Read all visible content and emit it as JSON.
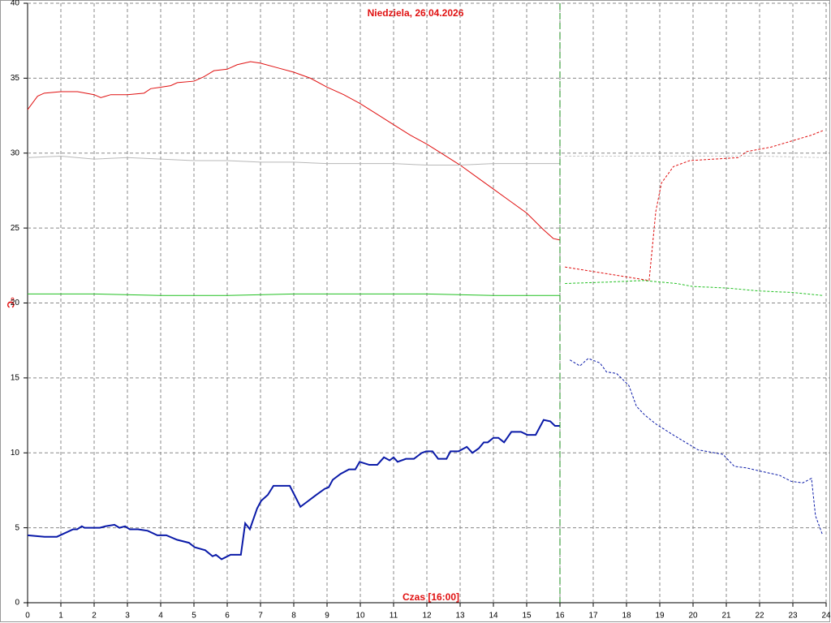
{
  "chart_data": {
    "type": "line",
    "title": "Niedziela, 26.04.2026",
    "x_label": "Czas [16:00]",
    "y_label": "°C",
    "xlim": [
      0,
      24
    ],
    "ylim": [
      0,
      40
    ],
    "xticks": [
      0,
      1,
      2,
      3,
      4,
      5,
      6,
      7,
      8,
      9,
      10,
      11,
      12,
      13,
      14,
      15,
      16,
      17,
      18,
      19,
      20,
      21,
      22,
      23,
      24
    ],
    "yticks": [
      0,
      5,
      10,
      15,
      20,
      25,
      30,
      35,
      40
    ],
    "grid": true,
    "vline": 16,
    "vline_color": "#1a8f1a",
    "series": [
      {
        "color": "#e01010",
        "style": "solid",
        "width": 1,
        "x": [
          0,
          0.3,
          0.5,
          1,
          1.5,
          2,
          2.2,
          2.5,
          3,
          3.5,
          3.7,
          4,
          4.3,
          4.5,
          5,
          5.3,
          5.6,
          6,
          6.3,
          6.7,
          7,
          7.5,
          8,
          8.5,
          9,
          9.5,
          10,
          10.5,
          11,
          11.5,
          12,
          12.5,
          13,
          13.5,
          14,
          14.5,
          15,
          15.5,
          15.8,
          16
        ],
        "values": [
          32.9,
          33.8,
          34.0,
          34.1,
          34.1,
          33.9,
          33.7,
          33.9,
          33.9,
          34.0,
          34.3,
          34.4,
          34.5,
          34.7,
          34.8,
          35.1,
          35.5,
          35.6,
          35.9,
          36.1,
          36.0,
          35.7,
          35.4,
          35.0,
          34.4,
          33.9,
          33.3,
          32.6,
          31.9,
          31.2,
          30.6,
          29.9,
          29.2,
          28.4,
          27.6,
          26.8,
          26.0,
          24.9,
          24.3,
          24.2
        ]
      },
      {
        "color": "#b8b8b8",
        "style": "solid",
        "width": 1,
        "x": [
          0,
          1,
          2,
          3,
          4,
          5,
          6,
          7,
          8,
          9,
          10,
          11,
          12,
          13,
          14,
          15,
          16
        ],
        "values": [
          29.7,
          29.8,
          29.6,
          29.7,
          29.6,
          29.5,
          29.5,
          29.4,
          29.4,
          29.3,
          29.3,
          29.3,
          29.2,
          29.2,
          29.3,
          29.3,
          29.3
        ]
      },
      {
        "color": "#22c022",
        "style": "solid",
        "width": 1,
        "x": [
          0,
          2,
          4,
          6,
          8,
          10,
          12,
          14,
          16
        ],
        "values": [
          20.6,
          20.6,
          20.5,
          20.5,
          20.6,
          20.6,
          20.6,
          20.5,
          20.5
        ]
      },
      {
        "color": "#0a1aa8",
        "style": "solid",
        "width": 2,
        "x": [
          0,
          0.51,
          0.88,
          1.37,
          1.49,
          1.63,
          1.71,
          1.93,
          2.17,
          2.34,
          2.61,
          2.76,
          2.93,
          3.07,
          3.32,
          3.61,
          3.9,
          4.17,
          4.49,
          4.85,
          5.02,
          5.34,
          5.56,
          5.66,
          5.83,
          6.1,
          6.29,
          6.41,
          6.54,
          6.68,
          6.9,
          7.02,
          7.22,
          7.39,
          7.88,
          8.2,
          8.44,
          8.68,
          8.93,
          9.05,
          9.17,
          9.41,
          9.66,
          9.85,
          9.98,
          10.27,
          10.51,
          10.71,
          10.88,
          11.0,
          11.12,
          11.37,
          11.61,
          11.85,
          11.98,
          12.17,
          12.34,
          12.59,
          12.71,
          12.95,
          13.2,
          13.37,
          13.56,
          13.71,
          13.83,
          14.0,
          14.15,
          14.32,
          14.54,
          14.83,
          15.02,
          15.27,
          15.51,
          15.71,
          15.85,
          16.0
        ],
        "values": [
          4.5,
          4.4,
          4.4,
          4.9,
          4.9,
          5.1,
          5.0,
          5.0,
          5.0,
          5.1,
          5.2,
          5.0,
          5.1,
          4.9,
          4.9,
          4.8,
          4.5,
          4.5,
          4.2,
          4.0,
          3.7,
          3.5,
          3.1,
          3.2,
          2.9,
          3.2,
          3.2,
          3.2,
          5.3,
          4.9,
          6.3,
          6.8,
          7.2,
          7.8,
          7.8,
          6.4,
          6.8,
          7.2,
          7.6,
          7.7,
          8.2,
          8.6,
          8.9,
          8.9,
          9.4,
          9.2,
          9.2,
          9.7,
          9.5,
          9.7,
          9.4,
          9.6,
          9.6,
          10.0,
          10.1,
          10.1,
          9.6,
          9.6,
          10.1,
          10.1,
          10.4,
          10.0,
          10.3,
          10.7,
          10.7,
          11.0,
          11.0,
          10.7,
          11.4,
          11.4,
          11.2,
          11.2,
          12.2,
          12.1,
          11.8,
          11.8
        ]
      },
      {
        "color": "#e01010",
        "style": "dashed",
        "width": 1,
        "x": [
          16.15,
          18.68,
          18.88,
          19.05,
          19.41,
          19.9,
          20.63,
          21.37,
          21.61,
          22.34,
          22.95,
          23.56,
          23.9
        ],
        "values": [
          22.4,
          21.5,
          26.1,
          28.0,
          29.1,
          29.5,
          29.6,
          29.7,
          30.1,
          30.4,
          30.8,
          31.2,
          31.5
        ]
      },
      {
        "color": "#c8c8c8",
        "style": "dashed",
        "width": 1,
        "x": [
          16.15,
          18,
          20,
          22,
          23.9
        ],
        "values": [
          29.8,
          29.8,
          29.8,
          29.8,
          29.7
        ]
      },
      {
        "color": "#22c022",
        "style": "dashed",
        "width": 1,
        "x": [
          16.15,
          17.5,
          18.5,
          19.5,
          20,
          21,
          22,
          23,
          23.9
        ],
        "values": [
          21.3,
          21.4,
          21.5,
          21.3,
          21.1,
          21.0,
          20.8,
          20.7,
          20.5
        ]
      },
      {
        "color": "#0a1aa8",
        "style": "dashed",
        "width": 1,
        "x": [
          16.3,
          16.6,
          16.85,
          17.2,
          17.4,
          17.7,
          18.07,
          18.3,
          18.56,
          18.9,
          19.4,
          20.15,
          20.9,
          21.24,
          21.6,
          21.98,
          22.6,
          22.95,
          23.3,
          23.56,
          23.68,
          23.88
        ],
        "values": [
          16.2,
          15.8,
          16.3,
          16.0,
          15.4,
          15.3,
          14.5,
          13.1,
          12.5,
          11.9,
          11.2,
          10.2,
          9.9,
          9.1,
          9.0,
          8.8,
          8.5,
          8.1,
          8.0,
          8.3,
          5.8,
          4.6
        ]
      }
    ]
  }
}
